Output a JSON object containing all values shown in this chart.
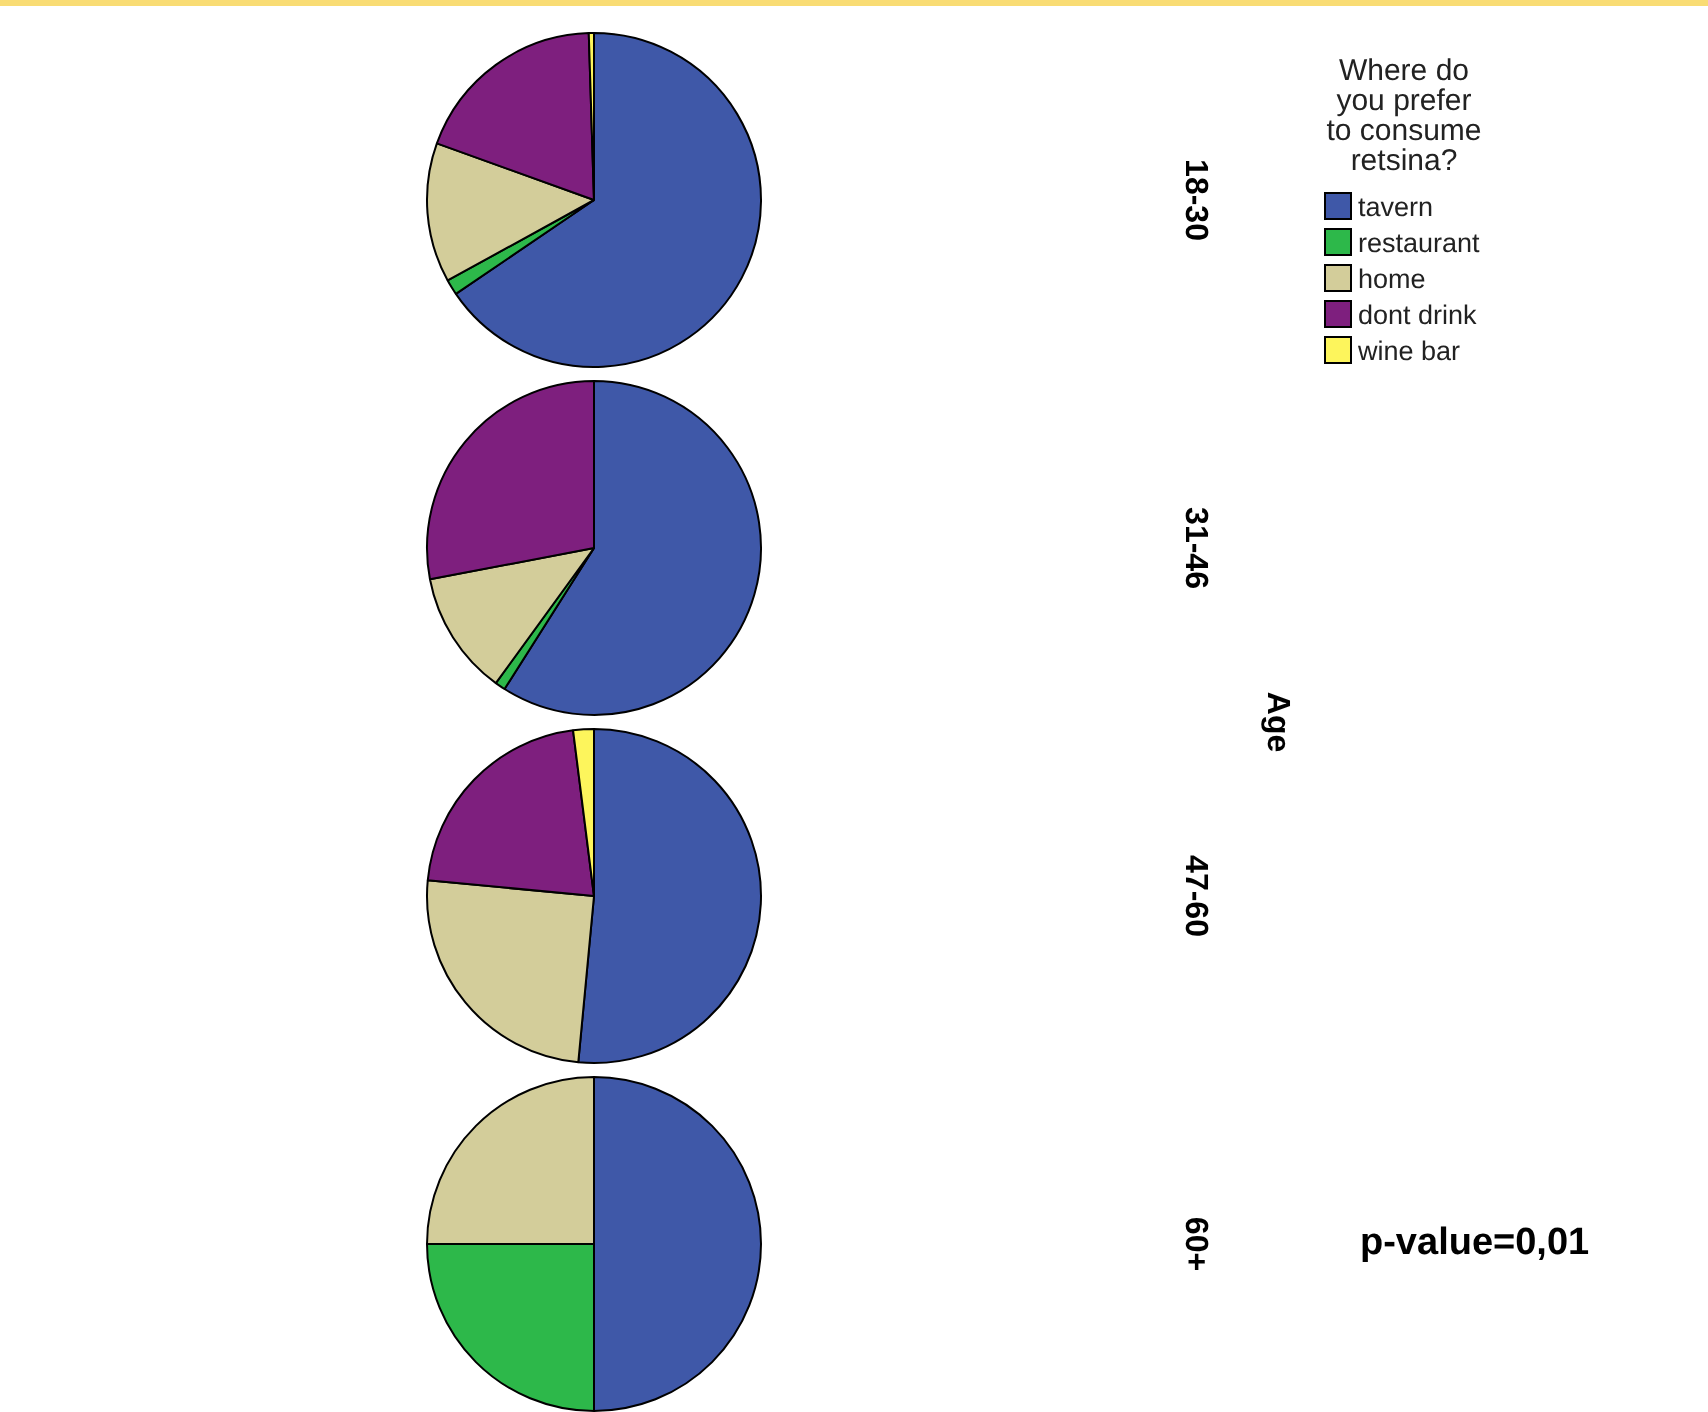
{
  "chart_data": {
    "type": "pie",
    "categories": [
      "tavern",
      "restaurant",
      "home",
      "dont drink",
      "wine bar"
    ],
    "colors": [
      "#3f58a8",
      "#2db84a",
      "#d3cd9a",
      "#7e1f7e",
      "#fdf55c"
    ],
    "legend": "right",
    "legend_title": "Where do you prefer to consume retsina?",
    "ylabel": "Age",
    "annotations": [
      "p-value=0,01"
    ],
    "series": [
      {
        "name": "18-30",
        "values": [
          65.5,
          1.5,
          13.5,
          19,
          0.5
        ]
      },
      {
        "name": "31-46",
        "values": [
          59,
          1,
          12,
          28,
          0
        ]
      },
      {
        "name": "47-60",
        "values": [
          51.5,
          0,
          25,
          21.5,
          2
        ]
      },
      {
        "name": "60+",
        "values": [
          50,
          25,
          25,
          0,
          0
        ]
      }
    ]
  }
}
